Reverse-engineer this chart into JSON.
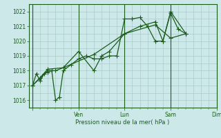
{
  "bg_color": "#cce8e8",
  "grid_color": "#aacccc",
  "line_color": "#1a5c1a",
  "marker_color": "#1a5c1a",
  "xlabel": "Pression niveau de la mer( hPa )",
  "ylim": [
    1015.5,
    1022.5
  ],
  "yticks": [
    1016,
    1017,
    1018,
    1019,
    1020,
    1021,
    1022
  ],
  "xlim": [
    -4,
    168
  ],
  "xtick_positions": [
    0,
    48,
    96,
    144,
    192
  ],
  "xtick_labels": [
    "",
    "Ven",
    "Lun",
    "Sam",
    "Dim"
  ],
  "xgrid_minor": 8,
  "series1": [
    [
      0,
      1017.0
    ],
    [
      4,
      1017.8
    ],
    [
      8,
      1017.3
    ],
    [
      12,
      1017.8
    ],
    [
      16,
      1017.9
    ],
    [
      20,
      1018.0
    ],
    [
      24,
      1016.0
    ],
    [
      28,
      1016.2
    ],
    [
      32,
      1018.0
    ],
    [
      40,
      1018.4
    ],
    [
      48,
      1018.8
    ],
    [
      56,
      1019.0
    ],
    [
      64,
      1018.8
    ],
    [
      72,
      1018.8
    ],
    [
      80,
      1019.0
    ],
    [
      88,
      1019.0
    ],
    [
      96,
      1021.5
    ],
    [
      104,
      1021.5
    ],
    [
      112,
      1021.6
    ],
    [
      120,
      1021.0
    ],
    [
      128,
      1020.0
    ],
    [
      136,
      1020.0
    ],
    [
      144,
      1021.9
    ],
    [
      152,
      1020.8
    ],
    [
      160,
      1020.5
    ]
  ],
  "series2": [
    [
      0,
      1017.0
    ],
    [
      8,
      1017.5
    ],
    [
      16,
      1018.0
    ],
    [
      24,
      1018.0
    ],
    [
      32,
      1018.2
    ],
    [
      48,
      1019.3
    ],
    [
      64,
      1018.0
    ],
    [
      72,
      1019.0
    ],
    [
      80,
      1019.3
    ],
    [
      96,
      1020.5
    ],
    [
      112,
      1021.0
    ],
    [
      128,
      1021.3
    ],
    [
      136,
      1020.0
    ],
    [
      144,
      1022.0
    ],
    [
      160,
      1020.5
    ]
  ],
  "series3": [
    [
      0,
      1017.0
    ],
    [
      16,
      1018.1
    ],
    [
      32,
      1018.2
    ],
    [
      64,
      1019.1
    ],
    [
      96,
      1020.5
    ],
    [
      128,
      1021.1
    ],
    [
      144,
      1020.2
    ],
    [
      160,
      1020.5
    ]
  ]
}
